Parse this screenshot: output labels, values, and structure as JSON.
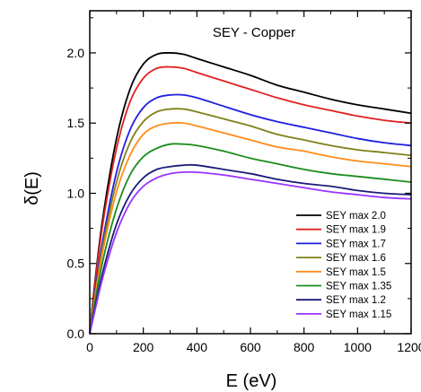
{
  "chart_data": {
    "type": "line",
    "title": "SEY - Copper",
    "xlabel": "E (eV)",
    "ylabel": "δ(E)",
    "xlim": [
      0,
      1200
    ],
    "ylim": [
      0,
      2.3
    ],
    "xticks": [
      0,
      200,
      400,
      600,
      800,
      1000,
      1200
    ],
    "xtick_labels": [
      "0",
      "200",
      "400",
      "600",
      "800",
      "1000",
      "1200"
    ],
    "yticks": [
      0.0,
      0.5,
      1.0,
      1.5,
      2.0
    ],
    "ytick_labels": [
      "0.0",
      "0.5",
      "1.0",
      "1.5",
      "2.0"
    ],
    "legend_position": "bottom-right",
    "x": [
      0,
      20,
      50,
      100,
      150,
      200,
      250,
      300,
      350,
      400,
      500,
      600,
      700,
      800,
      900,
      1000,
      1100,
      1200
    ],
    "series": [
      {
        "name": "SEY max 2.0",
        "color": "#000000",
        "values": [
          0.0,
          0.38,
          0.84,
          1.39,
          1.74,
          1.92,
          1.99,
          2.0,
          1.99,
          1.96,
          1.9,
          1.84,
          1.77,
          1.72,
          1.67,
          1.63,
          1.6,
          1.57
        ]
      },
      {
        "name": "SEY max 1.9",
        "color": "#e02020",
        "values": [
          0.0,
          0.36,
          0.8,
          1.32,
          1.65,
          1.82,
          1.89,
          1.9,
          1.89,
          1.86,
          1.8,
          1.74,
          1.68,
          1.63,
          1.59,
          1.55,
          1.52,
          1.5
        ]
      },
      {
        "name": "SEY max 1.7",
        "color": "#1f1fe0",
        "values": [
          0.0,
          0.3,
          0.68,
          1.15,
          1.45,
          1.61,
          1.68,
          1.7,
          1.7,
          1.68,
          1.62,
          1.56,
          1.51,
          1.47,
          1.43,
          1.39,
          1.36,
          1.34
        ]
      },
      {
        "name": "SEY max 1.6",
        "color": "#80801a",
        "values": [
          0.0,
          0.28,
          0.64,
          1.08,
          1.36,
          1.51,
          1.58,
          1.6,
          1.6,
          1.58,
          1.53,
          1.48,
          1.42,
          1.38,
          1.34,
          1.31,
          1.29,
          1.27
        ]
      },
      {
        "name": "SEY max 1.5",
        "color": "#ff8c1a",
        "values": [
          0.0,
          0.26,
          0.6,
          1.01,
          1.27,
          1.42,
          1.48,
          1.5,
          1.5,
          1.48,
          1.43,
          1.38,
          1.33,
          1.3,
          1.26,
          1.23,
          1.21,
          1.19
        ]
      },
      {
        "name": "SEY max 1.35",
        "color": "#1a8c1a",
        "values": [
          0.0,
          0.23,
          0.53,
          0.89,
          1.13,
          1.26,
          1.32,
          1.35,
          1.35,
          1.34,
          1.3,
          1.25,
          1.21,
          1.17,
          1.14,
          1.12,
          1.1,
          1.08
        ]
      },
      {
        "name": "SEY max 1.2",
        "color": "#1a1a7a",
        "values": [
          0.0,
          0.19,
          0.45,
          0.78,
          0.99,
          1.11,
          1.17,
          1.19,
          1.2,
          1.2,
          1.17,
          1.14,
          1.1,
          1.07,
          1.05,
          1.02,
          1.0,
          0.99
        ]
      },
      {
        "name": "SEY max 1.15",
        "color": "#9933ff",
        "values": [
          0.0,
          0.17,
          0.41,
          0.72,
          0.93,
          1.05,
          1.11,
          1.14,
          1.15,
          1.15,
          1.13,
          1.1,
          1.07,
          1.04,
          1.01,
          0.99,
          0.97,
          0.96
        ]
      }
    ]
  }
}
